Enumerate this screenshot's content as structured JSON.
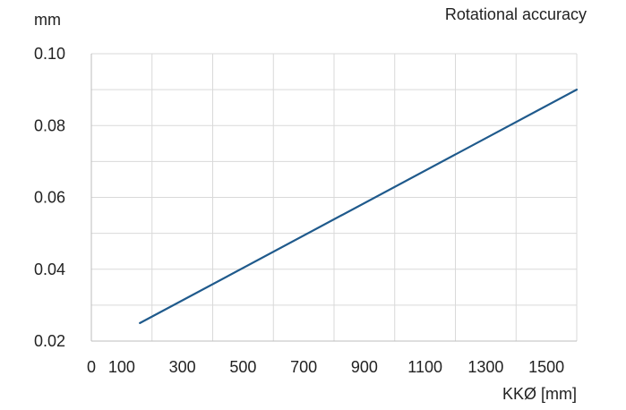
{
  "chart_data": {
    "type": "line",
    "title": "Rotational accuracy",
    "ylabel": "mm",
    "xlabel": "KKØ [mm]",
    "xlim": [
      0,
      1600
    ],
    "ylim": [
      0.02,
      0.1
    ],
    "x_ticks": [
      0,
      100,
      300,
      500,
      700,
      900,
      1100,
      1300,
      1500
    ],
    "x_tick_labels": [
      "0",
      "100",
      "300",
      "500",
      "700",
      "900",
      "1100",
      "1300",
      "1500"
    ],
    "x_gridlines": [
      0,
      200,
      400,
      600,
      800,
      1000,
      1200,
      1400,
      1600
    ],
    "y_ticks": [
      0.02,
      0.04,
      0.06,
      0.08,
      0.1
    ],
    "y_tick_labels": [
      "0.02",
      "0.04",
      "0.06",
      "0.08",
      "0.10"
    ],
    "y_gridlines": [
      0.03,
      0.04,
      0.05,
      0.06,
      0.07,
      0.08,
      0.09,
      0.1
    ],
    "grid": true,
    "series": [
      {
        "color": "#1f5a8c",
        "x": [
          160,
          1600
        ],
        "y": [
          0.025,
          0.09
        ]
      }
    ]
  }
}
